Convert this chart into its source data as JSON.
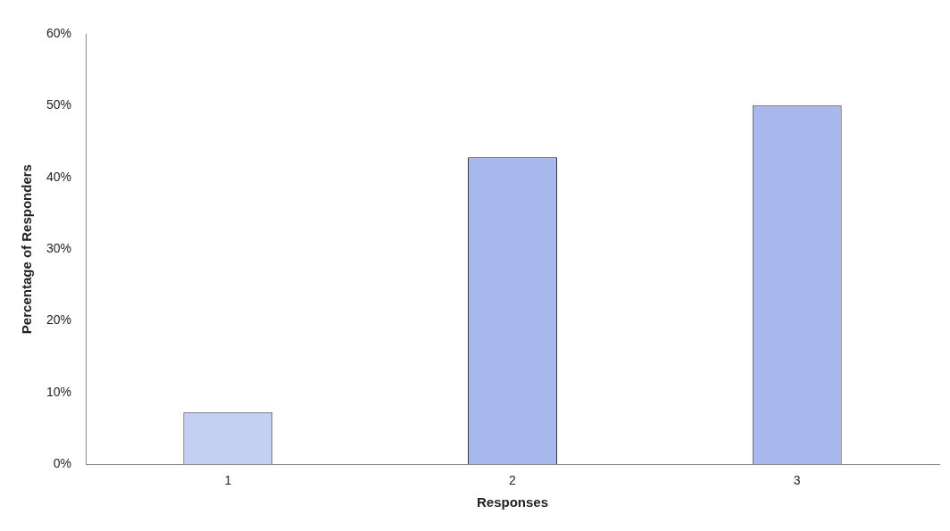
{
  "chart_data": {
    "type": "bar",
    "xlabel": "Responses",
    "ylabel": "Percentage of Responders",
    "categories": [
      "1",
      "2",
      "3"
    ],
    "values": [
      7.2,
      42.8,
      50
    ],
    "colors": [
      "#c3d0f4",
      "#a9b8ec",
      "#a9b8ec"
    ],
    "ylim": [
      0,
      60
    ],
    "yticks": [
      {
        "value": 0,
        "label": "0%"
      },
      {
        "value": 10,
        "label": "10%"
      },
      {
        "value": 20,
        "label": "20%"
      },
      {
        "value": 30,
        "label": "30%"
      },
      {
        "value": 40,
        "label": "40%"
      },
      {
        "value": 50,
        "label": "50%"
      },
      {
        "value": 60,
        "label": "60%"
      }
    ],
    "grid": false,
    "legend": false
  }
}
